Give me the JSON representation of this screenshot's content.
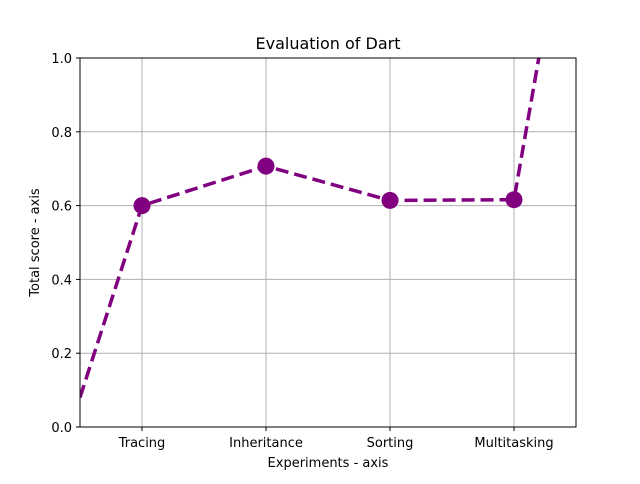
{
  "chart_data": {
    "type": "line",
    "title": "Evaluation of Dart",
    "xlabel": "Experiments - axis",
    "ylabel": "Total score - axis",
    "categories": [
      "Tracing",
      "Inheritance",
      "Sorting",
      "Multitasking"
    ],
    "series": [
      {
        "values": [
          0.6,
          0.707,
          0.614,
          0.616
        ],
        "color": "#800080",
        "line_style": "dashed",
        "marker": "circle"
      }
    ],
    "line_extension": {
      "start": {
        "x": -0.5,
        "y": 0.08
      },
      "end": {
        "x": 3.2,
        "y": 1.0
      }
    },
    "ylim": [
      0,
      1.0
    ],
    "xlim": [
      -0.5,
      3.5
    ],
    "yticks": [
      "0.0",
      "0.2",
      "0.4",
      "0.6",
      "0.8",
      "1.0"
    ],
    "grid": true
  }
}
